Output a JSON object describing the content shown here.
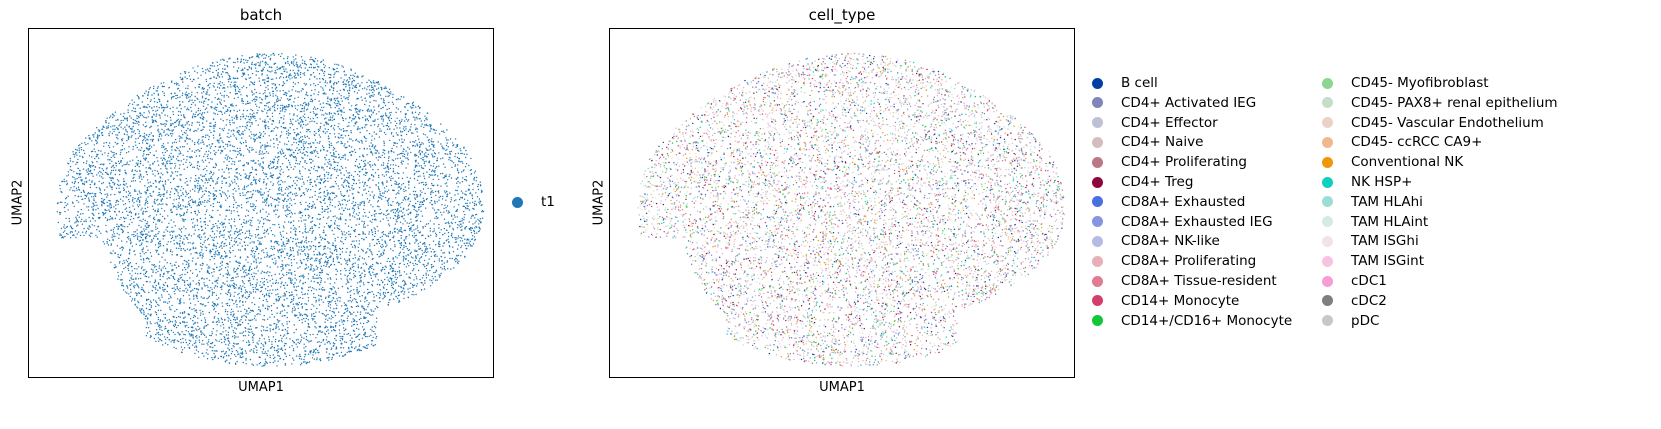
{
  "chart_data": [
    {
      "type": "scatter",
      "title": "batch",
      "xlabel": "UMAP1",
      "ylabel": "UMAP2",
      "ticks": "none",
      "legend": "right",
      "series": [
        {
          "name": "t1",
          "color": "#1f77b4"
        }
      ]
    },
    {
      "type": "scatter",
      "title": "cell_type",
      "xlabel": "UMAP1",
      "ylabel": "UMAP2",
      "ticks": "none",
      "legend": "right, two columns",
      "series": [
        {
          "name": "B cell",
          "color": "#023fa5"
        },
        {
          "name": "CD4+ Activated IEG",
          "color": "#7d87b9"
        },
        {
          "name": "CD4+ Effector",
          "color": "#bec1d4"
        },
        {
          "name": "CD4+ Naive",
          "color": "#d6bcc0"
        },
        {
          "name": "CD4+ Proliferating",
          "color": "#bb7784"
        },
        {
          "name": "CD4+ Treg",
          "color": "#8e063b"
        },
        {
          "name": "CD8A+ Exhausted",
          "color": "#4a6fe3"
        },
        {
          "name": "CD8A+ Exhausted IEG",
          "color": "#8595e1"
        },
        {
          "name": "CD8A+ NK-like",
          "color": "#b5bbe3"
        },
        {
          "name": "CD8A+ Proliferating",
          "color": "#e6afb9"
        },
        {
          "name": "CD8A+ Tissue-resident",
          "color": "#e07b91"
        },
        {
          "name": "CD14+ Monocyte",
          "color": "#d33f6a"
        },
        {
          "name": "CD14+/CD16+ Monocyte",
          "color": "#11c638"
        },
        {
          "name": "CD45- Myofibroblast",
          "color": "#8dd593"
        },
        {
          "name": "CD45- PAX8+ renal epithelium",
          "color": "#c6dec7"
        },
        {
          "name": "CD45- Vascular Endothelium",
          "color": "#ead3c6"
        },
        {
          "name": "CD45- ccRCC CA9+",
          "color": "#f0b98d"
        },
        {
          "name": "Conventional NK",
          "color": "#ef9708"
        },
        {
          "name": "NK HSP+",
          "color": "#0fcfc0"
        },
        {
          "name": "TAM HLAhi",
          "color": "#9cded6"
        },
        {
          "name": "TAM HLAint",
          "color": "#d5eae7"
        },
        {
          "name": "TAM ISGhi",
          "color": "#f3e1eb"
        },
        {
          "name": "TAM ISGint",
          "color": "#f6c4e1"
        },
        {
          "name": "cDC1",
          "color": "#f79cd4"
        },
        {
          "name": "cDC2",
          "color": "#7f7f7f"
        },
        {
          "name": "pDC",
          "color": "#c7c7c7"
        }
      ]
    }
  ]
}
